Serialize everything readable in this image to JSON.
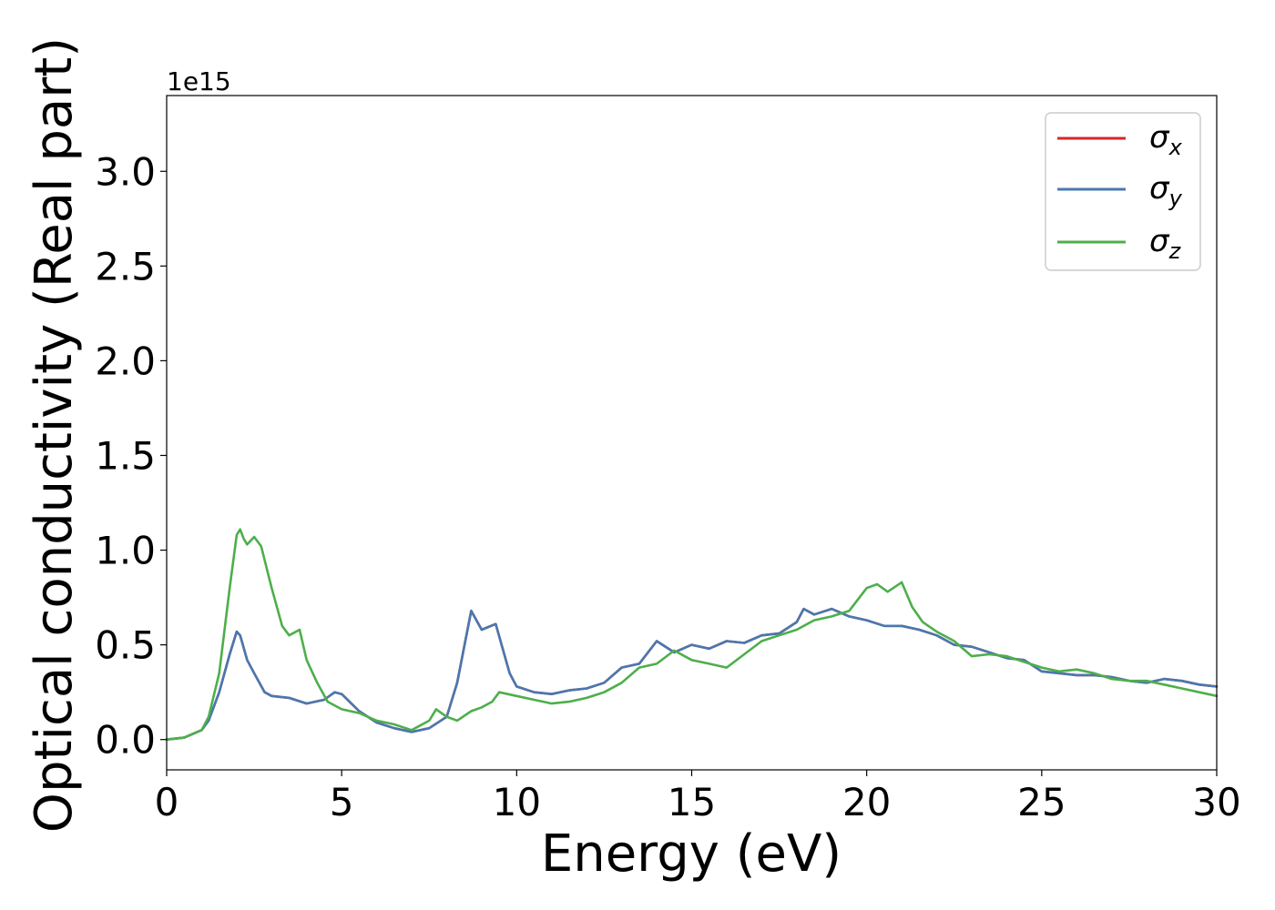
{
  "chart_data": {
    "type": "line",
    "title": "",
    "xlabel": "Energy (eV)",
    "ylabel": "Optical conductivity (Real part)",
    "y_offset_label": "1e15",
    "xlim": [
      0,
      30
    ],
    "ylim": [
      -0.16,
      3.4
    ],
    "x_ticks": [
      0,
      5,
      10,
      15,
      20,
      25,
      30
    ],
    "x_tick_labels": [
      "0",
      "5",
      "10",
      "15",
      "20",
      "25",
      "30"
    ],
    "y_ticks": [
      0.0,
      0.5,
      1.0,
      1.5,
      2.0,
      2.5,
      3.0
    ],
    "y_tick_labels": [
      "0.0",
      "0.5",
      "1.0",
      "1.5",
      "2.0",
      "2.5",
      "3.0"
    ],
    "grid": false,
    "legend_position": "top-right",
    "series": [
      {
        "name": "σ",
        "subscript": "x",
        "color": "#d62728",
        "x": [
          0,
          0.5,
          1.0,
          1.2,
          1.5,
          1.8,
          2.0,
          2.1,
          2.3,
          2.5,
          2.8,
          3.0,
          3.5,
          4.0,
          4.5,
          4.8,
          5.0,
          5.5,
          6.0,
          6.5,
          7.0,
          7.5,
          8.0,
          8.3,
          8.7,
          9.0,
          9.4,
          9.8,
          10.0,
          10.5,
          11.0,
          11.5,
          12.0,
          12.5,
          13.0,
          13.5,
          14.0,
          14.5,
          15.0,
          15.5,
          16.0,
          16.5,
          17.0,
          17.5,
          18.0,
          18.2,
          18.5,
          19.0,
          19.5,
          20.0,
          20.5,
          21.0,
          21.5,
          22.0,
          22.5,
          23.0,
          23.5,
          24.0,
          24.5,
          25.0,
          25.5,
          26.0,
          26.5,
          27.0,
          27.5,
          28.0,
          28.5,
          29.0,
          29.5,
          30.0
        ],
        "values": [
          0.0,
          0.01,
          0.05,
          0.1,
          0.25,
          0.45,
          0.57,
          0.55,
          0.42,
          0.35,
          0.25,
          0.23,
          0.22,
          0.19,
          0.21,
          0.25,
          0.24,
          0.15,
          0.09,
          0.06,
          0.04,
          0.06,
          0.12,
          0.3,
          0.68,
          0.58,
          0.61,
          0.35,
          0.28,
          0.25,
          0.24,
          0.26,
          0.27,
          0.3,
          0.38,
          0.4,
          0.52,
          0.46,
          0.5,
          0.48,
          0.52,
          0.51,
          0.55,
          0.56,
          0.62,
          0.69,
          0.66,
          0.69,
          0.65,
          0.63,
          0.6,
          0.6,
          0.58,
          0.55,
          0.5,
          0.49,
          0.46,
          0.43,
          0.42,
          0.36,
          0.35,
          0.34,
          0.34,
          0.33,
          0.31,
          0.3,
          0.32,
          0.31,
          0.29,
          0.28
        ]
      },
      {
        "name": "σ",
        "subscript": "y",
        "color": "#4878b0",
        "x": [
          0,
          0.5,
          1.0,
          1.2,
          1.5,
          1.8,
          2.0,
          2.1,
          2.3,
          2.5,
          2.8,
          3.0,
          3.5,
          4.0,
          4.5,
          4.8,
          5.0,
          5.5,
          6.0,
          6.5,
          7.0,
          7.5,
          8.0,
          8.3,
          8.7,
          9.0,
          9.4,
          9.8,
          10.0,
          10.5,
          11.0,
          11.5,
          12.0,
          12.5,
          13.0,
          13.5,
          14.0,
          14.5,
          15.0,
          15.5,
          16.0,
          16.5,
          17.0,
          17.5,
          18.0,
          18.2,
          18.5,
          19.0,
          19.5,
          20.0,
          20.5,
          21.0,
          21.5,
          22.0,
          22.5,
          23.0,
          23.5,
          24.0,
          24.5,
          25.0,
          25.5,
          26.0,
          26.5,
          27.0,
          27.5,
          28.0,
          28.5,
          29.0,
          29.5,
          30.0
        ],
        "values": [
          0.0,
          0.01,
          0.05,
          0.1,
          0.25,
          0.45,
          0.57,
          0.55,
          0.42,
          0.35,
          0.25,
          0.23,
          0.22,
          0.19,
          0.21,
          0.25,
          0.24,
          0.15,
          0.09,
          0.06,
          0.04,
          0.06,
          0.12,
          0.3,
          0.68,
          0.58,
          0.61,
          0.35,
          0.28,
          0.25,
          0.24,
          0.26,
          0.27,
          0.3,
          0.38,
          0.4,
          0.52,
          0.46,
          0.5,
          0.48,
          0.52,
          0.51,
          0.55,
          0.56,
          0.62,
          0.69,
          0.66,
          0.69,
          0.65,
          0.63,
          0.6,
          0.6,
          0.58,
          0.55,
          0.5,
          0.49,
          0.46,
          0.43,
          0.42,
          0.36,
          0.35,
          0.34,
          0.34,
          0.33,
          0.31,
          0.3,
          0.32,
          0.31,
          0.29,
          0.28
        ]
      },
      {
        "name": "σ",
        "subscript": "z",
        "color": "#4daf4a",
        "x": [
          0,
          0.5,
          1.0,
          1.2,
          1.5,
          1.8,
          2.0,
          2.1,
          2.2,
          2.3,
          2.5,
          2.7,
          3.0,
          3.3,
          3.5,
          3.8,
          4.0,
          4.3,
          4.6,
          5.0,
          5.5,
          6.0,
          6.5,
          7.0,
          7.5,
          7.7,
          8.0,
          8.3,
          8.7,
          9.0,
          9.3,
          9.5,
          10.0,
          10.5,
          11.0,
          11.5,
          12.0,
          12.5,
          13.0,
          13.5,
          14.0,
          14.5,
          15.0,
          15.5,
          16.0,
          16.5,
          17.0,
          17.5,
          18.0,
          18.5,
          19.0,
          19.5,
          20.0,
          20.3,
          20.6,
          21.0,
          21.3,
          21.6,
          22.0,
          22.5,
          23.0,
          23.5,
          24.0,
          24.5,
          25.0,
          25.5,
          26.0,
          26.5,
          27.0,
          27.5,
          28.0,
          28.5,
          29.0,
          29.5,
          30.0
        ],
        "values": [
          0.0,
          0.01,
          0.05,
          0.12,
          0.35,
          0.8,
          1.08,
          1.11,
          1.06,
          1.03,
          1.07,
          1.02,
          0.8,
          0.6,
          0.55,
          0.58,
          0.42,
          0.3,
          0.2,
          0.16,
          0.14,
          0.1,
          0.08,
          0.05,
          0.1,
          0.16,
          0.12,
          0.1,
          0.15,
          0.17,
          0.2,
          0.25,
          0.23,
          0.21,
          0.19,
          0.2,
          0.22,
          0.25,
          0.3,
          0.38,
          0.4,
          0.47,
          0.42,
          0.4,
          0.38,
          0.45,
          0.52,
          0.55,
          0.58,
          0.63,
          0.65,
          0.68,
          0.8,
          0.82,
          0.78,
          0.83,
          0.7,
          0.62,
          0.57,
          0.52,
          0.44,
          0.45,
          0.44,
          0.41,
          0.38,
          0.36,
          0.37,
          0.35,
          0.32,
          0.31,
          0.31,
          0.29,
          0.27,
          0.25,
          0.23
        ]
      }
    ]
  }
}
